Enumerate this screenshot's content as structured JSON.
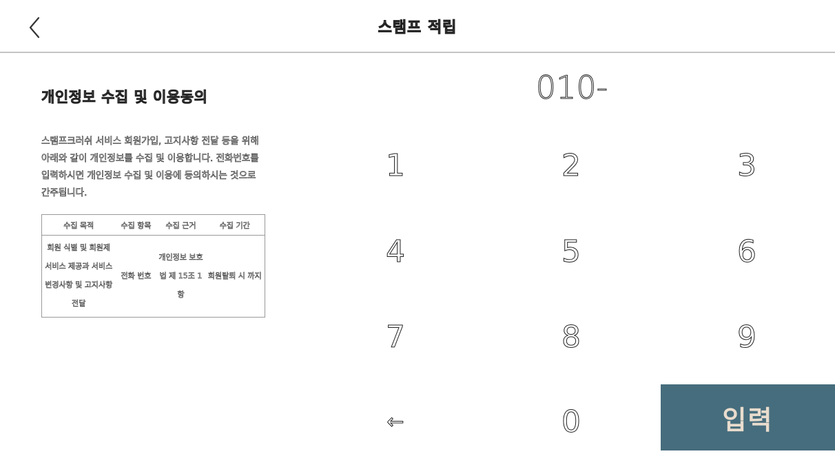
{
  "header": {
    "title": "스탬프 적립",
    "back_icon": "chevron-left-icon"
  },
  "consent": {
    "title": "개인정보 수집 및 이용동의",
    "body": "스탬프크러쉬 서비스 회원가입, 고지사항 전달 등을 위해 아래와 같이 개인정보를 수집 및 이용합니다. 전화번호를 입력하시면 개인정보 수집 및 이용에 동의하시는 것으로 간주됩니다.",
    "table": {
      "headers": [
        "수집 목적",
        "수집 항목",
        "수집 근거",
        "수집 기간"
      ],
      "row": [
        "회원 식별 및 회원제 서비스 제공과 서비스 변경사항 및 고지사항 전달",
        "전화 번호",
        "개인정보 보호법 제 15조 1항",
        "회원탈퇴 시 까지"
      ]
    }
  },
  "phone_input": {
    "value": "010-"
  },
  "keypad": {
    "keys": [
      "1",
      "2",
      "3",
      "4",
      "5",
      "6",
      "7",
      "8",
      "9",
      "←",
      "0"
    ],
    "backspace_icon": "left-arrow-icon",
    "enter_label": "입력",
    "enter_color": "#466d7d"
  }
}
